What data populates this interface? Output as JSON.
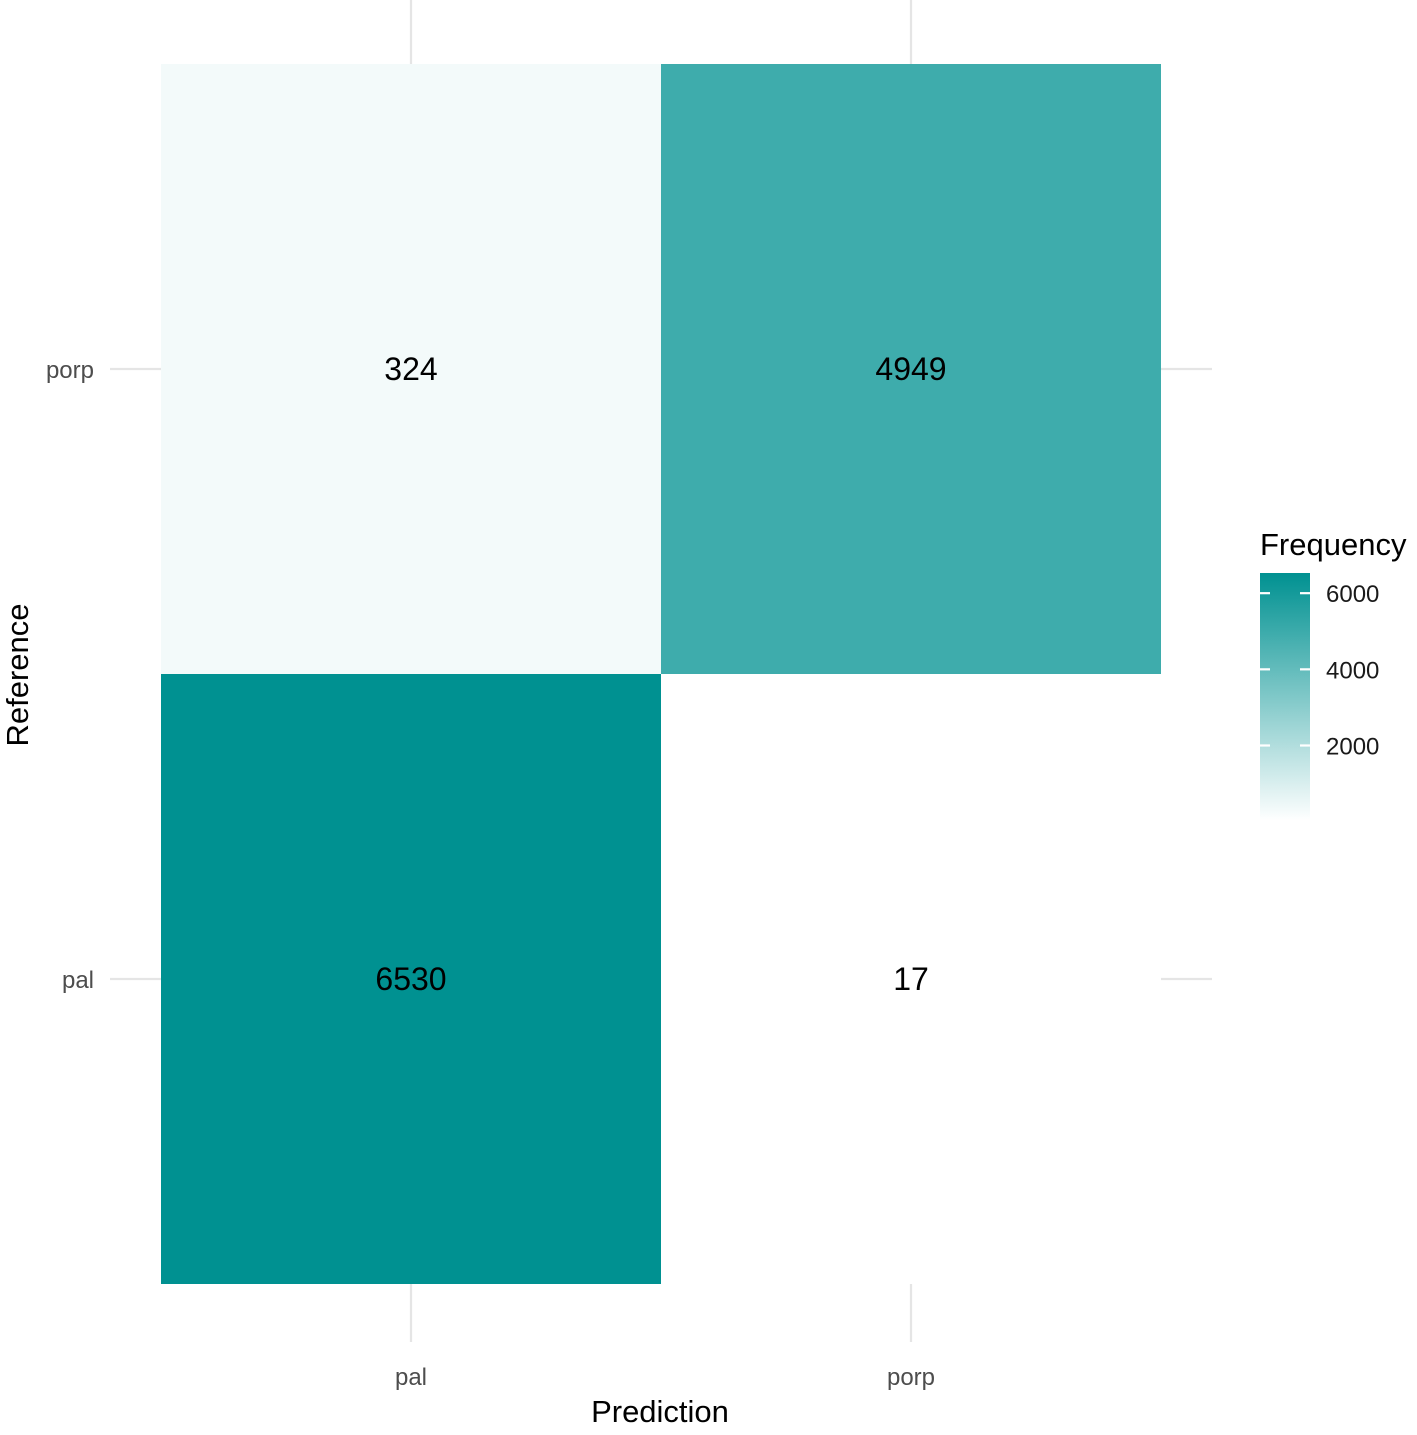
{
  "chart_data": {
    "type": "heatmap",
    "title": "",
    "xlabel": "Prediction",
    "ylabel": "Reference",
    "x_categories": [
      "pal",
      "porp"
    ],
    "y_categories": [
      "pal",
      "porp"
    ],
    "cells": [
      {
        "x": "pal",
        "y": "porp",
        "value": 324
      },
      {
        "x": "porp",
        "y": "porp",
        "value": 4949
      },
      {
        "x": "pal",
        "y": "pal",
        "value": 6530
      },
      {
        "x": "porp",
        "y": "pal",
        "value": 17
      }
    ],
    "legend": {
      "title": "Frequency",
      "position": "right",
      "ticks": [
        2000,
        4000,
        6000
      ],
      "tick_labels": [
        "2000",
        "4000",
        "6000"
      ],
      "range": [
        17,
        6530
      ]
    },
    "color_low": "#ffffff",
    "color_high": "#009191",
    "grid": true
  }
}
